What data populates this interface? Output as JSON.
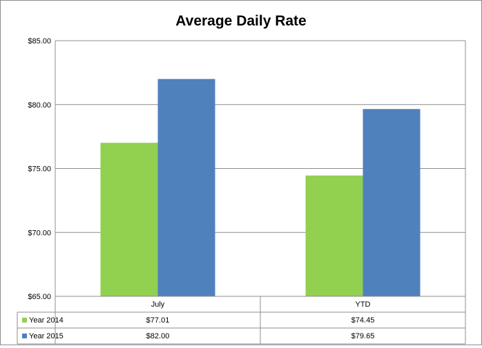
{
  "chart_data": {
    "type": "bar",
    "title": "Average Daily Rate",
    "categories": [
      "July",
      "YTD"
    ],
    "series": [
      {
        "name": "Year 2014",
        "values": [
          77.01,
          74.45
        ],
        "labels": [
          "$77.01",
          "$74.45"
        ],
        "color": "#92d050"
      },
      {
        "name": "Year 2015",
        "values": [
          82.0,
          79.65
        ],
        "labels": [
          "$82.00",
          "$79.65"
        ],
        "color": "#4f81bd"
      }
    ],
    "ylim": [
      65,
      85
    ],
    "yticks": [
      65,
      70,
      75,
      80,
      85
    ],
    "ytick_labels": [
      "$65.00",
      "$70.00",
      "$75.00",
      "$80.00",
      "$85.00"
    ],
    "grid": true,
    "legend": "data-table"
  }
}
